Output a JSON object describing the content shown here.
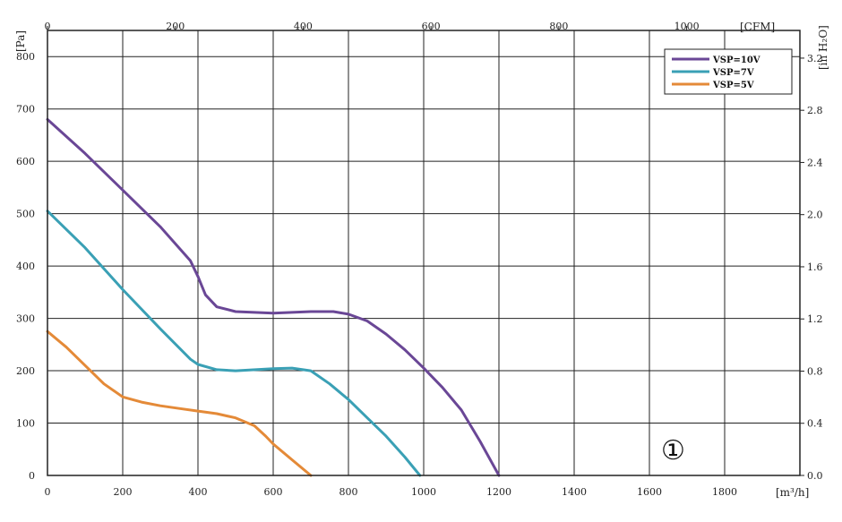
{
  "chart_data": {
    "type": "line",
    "xlabel": "[m³/h]",
    "x2label": "[CFM]",
    "ylabel": "[Pa]",
    "y2label": "[in H₂O]",
    "xlim": [
      0,
      2000
    ],
    "ylim": [
      0,
      850
    ],
    "x_ticks": [
      "0",
      "200",
      "400",
      "600",
      "800",
      "1000",
      "1200",
      "1400",
      "1600",
      "1800"
    ],
    "y_ticks": [
      "0",
      "100",
      "200",
      "300",
      "400",
      "500",
      "600",
      "700",
      "800"
    ],
    "x2_ticks": [
      "0",
      "200",
      "400",
      "600",
      "800",
      "1000"
    ],
    "y2_ticks": [
      "0.0",
      "0.4",
      "0.8",
      "1.2",
      "1.6",
      "2.0",
      "2.4",
      "2.8",
      "3.2"
    ],
    "grid": true,
    "legend_position": "top-right",
    "annotation": "①",
    "series": [
      {
        "name": "VSP=10V",
        "color": "#6a4796",
        "x": [
          0,
          100,
          200,
          300,
          380,
          400,
          420,
          450,
          500,
          600,
          700,
          760,
          800,
          850,
          900,
          950,
          1000,
          1050,
          1100,
          1150,
          1200
        ],
        "y": [
          680,
          615,
          545,
          475,
          410,
          380,
          345,
          322,
          313,
          310,
          313,
          313,
          308,
          295,
          270,
          240,
          205,
          168,
          125,
          65,
          0
        ]
      },
      {
        "name": "VSP=7V",
        "color": "#3aa0b5",
        "x": [
          0,
          100,
          200,
          300,
          380,
          400,
          450,
          500,
          600,
          650,
          700,
          750,
          800,
          850,
          900,
          950,
          990
        ],
        "y": [
          505,
          435,
          355,
          280,
          222,
          212,
          202,
          200,
          204,
          205,
          200,
          175,
          145,
          110,
          75,
          35,
          0
        ]
      },
      {
        "name": "VSP=5V",
        "color": "#e48a38",
        "x": [
          0,
          50,
          100,
          150,
          200,
          250,
          300,
          350,
          400,
          450,
          500,
          550,
          580,
          600,
          650,
          700
        ],
        "y": [
          275,
          245,
          210,
          175,
          150,
          140,
          133,
          128,
          123,
          118,
          110,
          95,
          75,
          60,
          30,
          0
        ]
      }
    ]
  }
}
